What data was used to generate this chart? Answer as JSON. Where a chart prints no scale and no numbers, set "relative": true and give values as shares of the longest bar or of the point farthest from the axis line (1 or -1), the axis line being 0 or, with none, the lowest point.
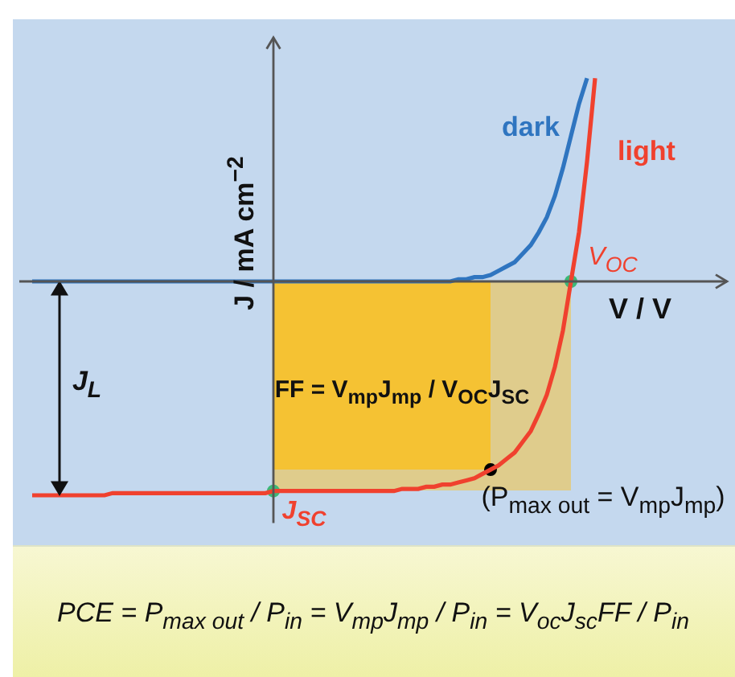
{
  "chart_data": {
    "type": "line",
    "relative": true,
    "xlabel": "V / V",
    "ylabel": "J / mA cm$^{−2}$",
    "categories": [
      null,
      null,
      null,
      null,
      null,
      null,
      null,
      null,
      null,
      null,
      null,
      null,
      null,
      null,
      null,
      null,
      null,
      null,
      null,
      null,
      null,
      null,
      null,
      null,
      null,
      null,
      null,
      null,
      null,
      null,
      null,
      null,
      null,
      null,
      null,
      null,
      null,
      null,
      null,
      null,
      null,
      null,
      null,
      null,
      null,
      null,
      null,
      null,
      null,
      null,
      null,
      null,
      null,
      null,
      null,
      null,
      null,
      null,
      null,
      null,
      null,
      null,
      null,
      null,
      null,
      null,
      null,
      null,
      null,
      null,
      null
    ],
    "series": [
      {
        "name": "dark",
        "color": "#2f75c0",
        "values": [
          0,
          0,
          0,
          0,
          0,
          0,
          0,
          0,
          0,
          0,
          0,
          0,
          0,
          0,
          0,
          0,
          0,
          0,
          0,
          0,
          0,
          0,
          0,
          0,
          0,
          0,
          0,
          0,
          0,
          0,
          0,
          0,
          0,
          0,
          0,
          0,
          0,
          0,
          0,
          0,
          0,
          0,
          0,
          0,
          0,
          0,
          0,
          0,
          0,
          0,
          0,
          0,
          0,
          0.01,
          0.01,
          0.02,
          0.02,
          0.03,
          0.05,
          0.07,
          0.09,
          0.13,
          0.17,
          0.23,
          0.3,
          0.4,
          0.53,
          0.68,
          0.83,
          0.95,
          null
        ]
      },
      {
        "name": "light",
        "color": "#f0412e",
        "values": [
          -1,
          -1,
          -1,
          -1,
          -1,
          -1,
          -1,
          -1,
          -1,
          -1,
          -0.99,
          -0.99,
          -0.99,
          -0.99,
          -0.99,
          -0.99,
          -0.99,
          -0.99,
          -0.99,
          -0.99,
          -0.99,
          -0.99,
          -0.99,
          -0.99,
          -0.99,
          -0.99,
          -0.99,
          -0.99,
          -0.99,
          -0.99,
          -0.98,
          -0.98,
          -0.98,
          -0.98,
          -0.98,
          -0.98,
          -0.98,
          -0.98,
          -0.98,
          -0.98,
          -0.98,
          -0.98,
          -0.98,
          -0.98,
          -0.98,
          -0.98,
          -0.97,
          -0.97,
          -0.97,
          -0.96,
          -0.96,
          -0.95,
          -0.95,
          -0.94,
          -0.93,
          -0.92,
          -0.9,
          -0.88,
          -0.86,
          -0.83,
          -0.8,
          -0.75,
          -0.7,
          -0.62,
          -0.53,
          -0.4,
          -0.23,
          0,
          0.23,
          0.56,
          0.95
        ],
        "colors": [
          null,
          null,
          null,
          null,
          null,
          null,
          null,
          null,
          null,
          null,
          null,
          null,
          null,
          null,
          null,
          null,
          null,
          null,
          null,
          null,
          null,
          null,
          null,
          null,
          null,
          null,
          null,
          null,
          null,
          null,
          "#3cb878",
          null,
          null,
          null,
          null,
          null,
          null,
          null,
          null,
          null,
          null,
          null,
          null,
          null,
          null,
          null,
          null,
          null,
          null,
          null,
          null,
          null,
          null,
          null,
          null,
          null,
          null,
          "#000000",
          null,
          null,
          null,
          null,
          null,
          null,
          null,
          null,
          null,
          "#3cb878",
          null,
          null,
          null
        ]
      }
    ],
    "annotations": [
      "V$_{OC}$",
      "J$_{SC}$",
      "J$_{L}$",
      "FF = V$_{mp}$J$_{mp}$ / V$_{OC}$J$_{SC}$",
      "(P$_{max out}$ = V$_{mp}$J$_{mp}$)",
      "PCE = P$_{max out}$ / P$_{in}$ = V$_{mp}$J$_{mp}$ / P$_{in}$ = V$_{oc}$J$_{sc}$FF / P$_{in}$"
    ]
  }
}
